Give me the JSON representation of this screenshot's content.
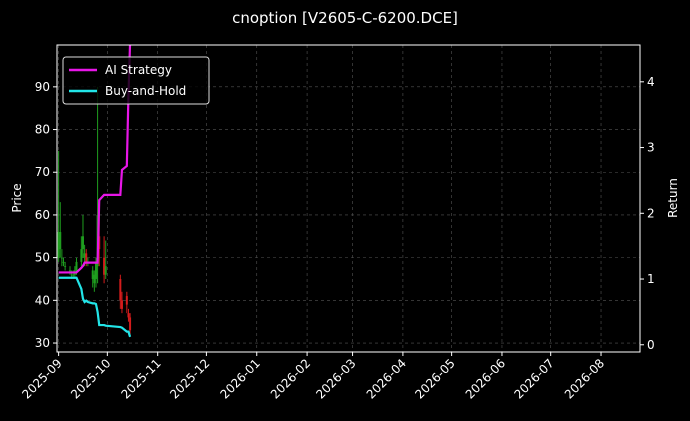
{
  "chart_data": {
    "type": "candlestick",
    "title": "cnoption [V2605-C-6200.DCE]",
    "ylabel": "Price",
    "y2label": "Return",
    "x": [
      "2025-09-01",
      "2025-09-02",
      "2025-09-03",
      "2025-09-04",
      "2025-09-05",
      "2025-09-08",
      "2025-09-09",
      "2025-09-10",
      "2025-09-11",
      "2025-09-12",
      "2025-09-15",
      "2025-09-16",
      "2025-09-17",
      "2025-09-18",
      "2025-09-19",
      "2025-09-22",
      "2025-09-23",
      "2025-09-24",
      "2025-09-25",
      "2025-09-26",
      "2025-09-29",
      "2025-09-30",
      "2025-10-09",
      "2025-10-10",
      "2025-10-13",
      "2025-10-14",
      "2025-10-15"
    ],
    "open": [
      50,
      52,
      50,
      49,
      48,
      47,
      46,
      46,
      46,
      47,
      49,
      52,
      50,
      51,
      49,
      45,
      44,
      45,
      48,
      55,
      50,
      46,
      45,
      40,
      41,
      37,
      36
    ],
    "high": [
      75,
      63,
      52,
      50,
      49,
      48,
      47,
      47,
      48,
      50,
      55,
      60,
      53,
      52,
      50,
      48,
      47,
      50,
      90,
      60,
      55,
      54,
      46,
      42,
      42,
      38,
      37
    ],
    "low": [
      49,
      50,
      48,
      48,
      47,
      46,
      45,
      45,
      45,
      46,
      48,
      50,
      48,
      48,
      48,
      43,
      42,
      43,
      44,
      48,
      44,
      45,
      38,
      37,
      37,
      35,
      32
    ],
    "close": [
      56,
      56,
      50,
      49,
      48,
      47,
      46,
      46,
      47,
      49,
      52,
      55,
      51,
      49,
      49,
      47,
      46,
      49,
      60,
      52,
      46,
      48,
      40,
      38,
      39,
      36,
      33
    ],
    "up_color": "#1f9e1f",
    "down_color": "#d41c1c",
    "series": [
      {
        "name": "AI Strategy",
        "color": "#e816e8",
        "axis": "y2",
        "values": [
          1.1,
          1.1,
          1.1,
          1.1,
          1.1,
          1.1,
          1.1,
          1.1,
          1.1,
          1.1,
          1.17,
          1.2,
          1.25,
          1.25,
          1.25,
          1.25,
          1.25,
          1.25,
          1.25,
          2.2,
          2.28,
          2.28,
          2.28,
          2.66,
          2.72,
          3.8,
          4.6
        ]
      },
      {
        "name": "Buy-and-Hold",
        "color": "#22e5e8",
        "axis": "y2",
        "values": [
          1.02,
          1.02,
          1.02,
          1.02,
          1.02,
          1.02,
          1.02,
          1.02,
          1.02,
          1.02,
          0.85,
          0.7,
          0.65,
          0.67,
          0.65,
          0.63,
          0.63,
          0.62,
          0.5,
          0.3,
          0.3,
          0.29,
          0.27,
          0.26,
          0.2,
          0.2,
          0.12
        ]
      }
    ],
    "xlim": [
      "2025-08-31",
      "2026-08-25"
    ],
    "xticks": [
      {
        "value": "2025-09-01",
        "label": "2025-09"
      },
      {
        "value": "2025-10-01",
        "label": "2025-10"
      },
      {
        "value": "2025-11-01",
        "label": "2025-11"
      },
      {
        "value": "2025-12-01",
        "label": "2025-12"
      },
      {
        "value": "2026-01-01",
        "label": "2026-01"
      },
      {
        "value": "2026-02-01",
        "label": "2026-02"
      },
      {
        "value": "2026-03-01",
        "label": "2026-03"
      },
      {
        "value": "2026-04-01",
        "label": "2026-04"
      },
      {
        "value": "2026-05-01",
        "label": "2026-05"
      },
      {
        "value": "2026-06-01",
        "label": "2026-06"
      },
      {
        "value": "2026-07-01",
        "label": "2026-07"
      },
      {
        "value": "2026-08-01",
        "label": "2026-08"
      }
    ],
    "ylim": [
      27.9,
      99.8
    ],
    "yticks": [
      30,
      40,
      50,
      60,
      70,
      80,
      90
    ],
    "y2lim": [
      -0.11,
      4.56
    ],
    "y2ticks": [
      0,
      1,
      2,
      3,
      4
    ],
    "grid": true,
    "legend": "upper left"
  }
}
